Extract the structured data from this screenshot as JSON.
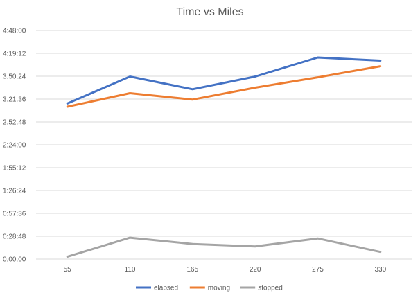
{
  "chart_data": {
    "type": "line",
    "title": "Time vs Miles",
    "xlabel": "",
    "ylabel": "",
    "categories": [
      "55",
      "110",
      "165",
      "220",
      "275",
      "330"
    ],
    "y_ticks": [
      "0:00:00",
      "0:28:48",
      "0:57:36",
      "1:26:24",
      "1:55:12",
      "2:24:00",
      "2:52:48",
      "3:21:36",
      "3:50:24",
      "4:19:12",
      "4:48:00"
    ],
    "y_unit": "h:mm:ss",
    "ylim": [
      "0:00:00",
      "4:48:00"
    ],
    "grid": true,
    "legend_position": "bottom",
    "series": [
      {
        "name": "elapsed",
        "color": "#4472c4",
        "values": [
          "3:16:00",
          "3:50:00",
          "3:34:00",
          "3:50:00",
          "4:14:00",
          "4:10:00"
        ]
      },
      {
        "name": "moving",
        "color": "#ed7d31",
        "values": [
          "3:12:00",
          "3:29:00",
          "3:21:00",
          "3:36:00",
          "3:49:00",
          "4:03:00"
        ]
      },
      {
        "name": "stopped",
        "color": "#a5a5a5",
        "values": [
          "0:03:00",
          "0:27:00",
          "0:19:00",
          "0:16:00",
          "0:26:00",
          "0:09:00"
        ]
      }
    ]
  }
}
